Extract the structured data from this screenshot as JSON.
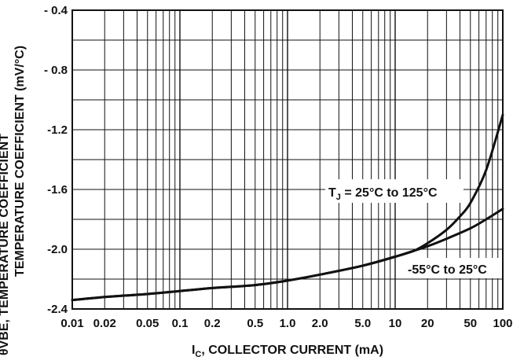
{
  "chart_data": {
    "type": "line",
    "xscale": "log",
    "xlim": [
      0.01,
      100
    ],
    "ylim": [
      -2.4,
      -0.4
    ],
    "grid": true,
    "xlabel": {
      "main": "I",
      "sub": "C",
      "rest": ", COLLECTOR CURRENT (mA)"
    },
    "ylabel": {
      "line1": "θVBE, TEMPERATURE COEFFICIENT",
      "line2": "TEMPERATURE COEFFICIENT (mV/°C)"
    },
    "x_ticks": [
      {
        "value": 0.01,
        "label": "0.01"
      },
      {
        "value": 0.02,
        "label": "0.02"
      },
      {
        "value": 0.05,
        "label": "0.05"
      },
      {
        "value": 0.1,
        "label": "0.1"
      },
      {
        "value": 0.2,
        "label": "0.2"
      },
      {
        "value": 0.5,
        "label": "0.5"
      },
      {
        "value": 1,
        "label": "1.0"
      },
      {
        "value": 2,
        "label": "2.0"
      },
      {
        "value": 5,
        "label": "5.0"
      },
      {
        "value": 10,
        "label": "10"
      },
      {
        "value": 20,
        "label": "20"
      },
      {
        "value": 50,
        "label": "50"
      },
      {
        "value": 100,
        "label": "100"
      }
    ],
    "y_ticks": [
      {
        "value": -0.4,
        "label": "- 0.4"
      },
      {
        "value": -0.8,
        "label": "- 0.8"
      },
      {
        "value": -1.2,
        "label": "-1.2"
      },
      {
        "value": -1.6,
        "label": "-1.6"
      },
      {
        "value": -2.0,
        "label": "-2.0"
      },
      {
        "value": -2.4,
        "label": "-2.4"
      }
    ],
    "series": [
      {
        "name": "T_J = 25°C to 125°C",
        "x": [
          0.01,
          0.02,
          0.05,
          0.1,
          0.2,
          0.5,
          1,
          2,
          5,
          10,
          15,
          20,
          30,
          40,
          50,
          70,
          100
        ],
        "y": [
          -2.34,
          -2.32,
          -2.3,
          -2.28,
          -2.26,
          -2.24,
          -2.21,
          -2.17,
          -2.11,
          -2.05,
          -2.01,
          -1.96,
          -1.87,
          -1.78,
          -1.69,
          -1.47,
          -1.1
        ]
      },
      {
        "name": "-55°C to 25°C",
        "x": [
          0.01,
          0.02,
          0.05,
          0.1,
          0.2,
          0.5,
          1,
          2,
          5,
          10,
          15,
          20,
          30,
          50,
          70,
          100
        ],
        "y": [
          -2.34,
          -2.32,
          -2.3,
          -2.28,
          -2.26,
          -2.24,
          -2.21,
          -2.17,
          -2.11,
          -2.05,
          -2.01,
          -1.98,
          -1.93,
          -1.86,
          -1.8,
          -1.73
        ]
      }
    ],
    "annotations": [
      {
        "id": "hot",
        "main": "T",
        "sub": "J",
        "rest": " = 25°C to 125°C"
      },
      {
        "id": "cold",
        "text": "-55°C to 25°C"
      }
    ]
  }
}
